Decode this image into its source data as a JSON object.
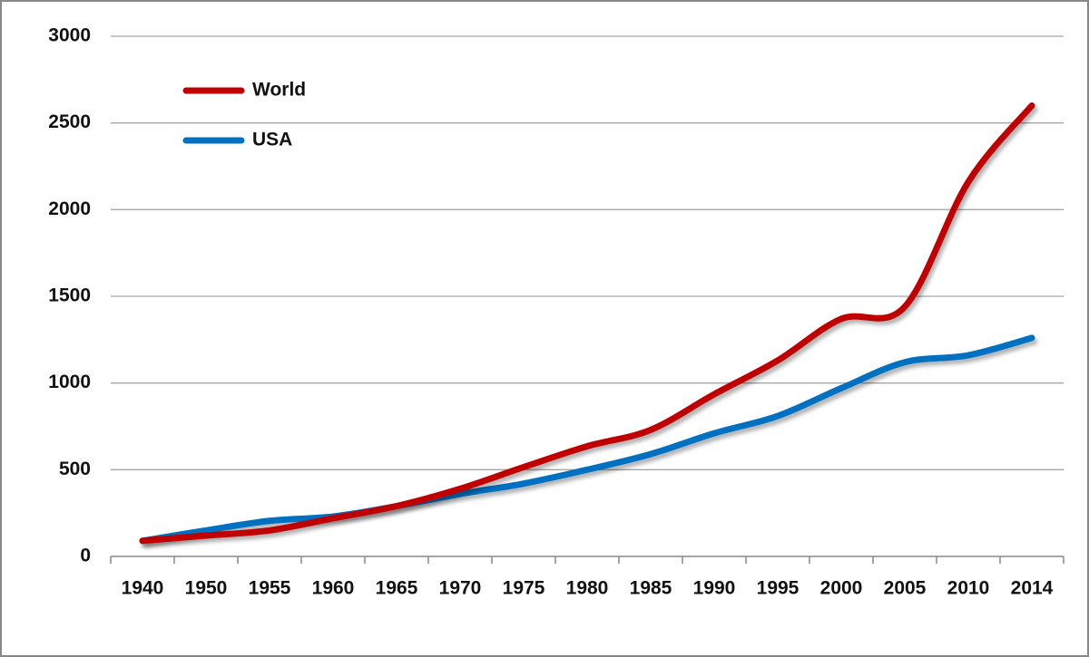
{
  "chart_data": {
    "type": "line",
    "categories": [
      "1940",
      "1950",
      "1955",
      "1960",
      "1965",
      "1970",
      "1975",
      "1980",
      "1985",
      "1990",
      "1995",
      "2000",
      "2005",
      "2010",
      "2014"
    ],
    "series": [
      {
        "name": "World",
        "color": "#c00000",
        "values": [
          90,
          120,
          150,
          220,
          290,
          390,
          515,
          635,
          730,
          935,
          1130,
          1370,
          1440,
          2160,
          2600
        ]
      },
      {
        "name": "USA",
        "color": "#0070c0",
        "values": [
          90,
          150,
          205,
          230,
          290,
          360,
          420,
          500,
          590,
          710,
          810,
          970,
          1120,
          1160,
          1260
        ]
      }
    ],
    "ylim": [
      0,
      3000
    ],
    "yticks": [
      0,
      500,
      1000,
      1500,
      2000,
      2500,
      3000
    ],
    "grid": true,
    "legend": "top-left"
  }
}
